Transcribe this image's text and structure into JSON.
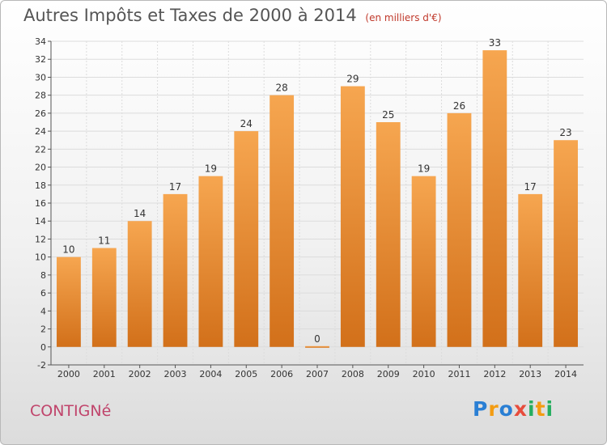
{
  "header": {
    "title": "Autres Impôts et Taxes de 2000 à 2014",
    "subtitle": "(en milliers d'€)"
  },
  "footer": {
    "commune": "CONTIGNé",
    "brand_letters": [
      {
        "ch": "P",
        "color": "#2a7fd4"
      },
      {
        "ch": "r",
        "color": "#f39c12"
      },
      {
        "ch": "o",
        "color": "#2a7fd4"
      },
      {
        "ch": "x",
        "color": "#e74c3c"
      },
      {
        "ch": "i",
        "color": "#27ae60"
      },
      {
        "ch": "t",
        "color": "#f39c12"
      },
      {
        "ch": "i",
        "color": "#27ae60"
      }
    ]
  },
  "chart_data": {
    "type": "bar",
    "title": "Autres Impôts et Taxes de 2000 à 2014",
    "subtitle": "(en milliers d'€)",
    "categories": [
      "2000",
      "2001",
      "2002",
      "2003",
      "2004",
      "2005",
      "2006",
      "2007",
      "2008",
      "2009",
      "2010",
      "2011",
      "2012",
      "2013",
      "2014"
    ],
    "values": [
      10,
      11,
      14,
      17,
      19,
      24,
      28,
      0,
      29,
      25,
      19,
      26,
      33,
      17,
      23
    ],
    "ylim": [
      -2,
      34
    ],
    "yticks": [
      -2,
      0,
      2,
      4,
      6,
      8,
      10,
      12,
      14,
      16,
      18,
      20,
      22,
      24,
      26,
      28,
      30,
      32,
      34
    ],
    "grid": true,
    "bar_color_top": "#f6a650",
    "bar_color_bottom": "#d2701a",
    "grid_color": "#dcdcdc"
  }
}
